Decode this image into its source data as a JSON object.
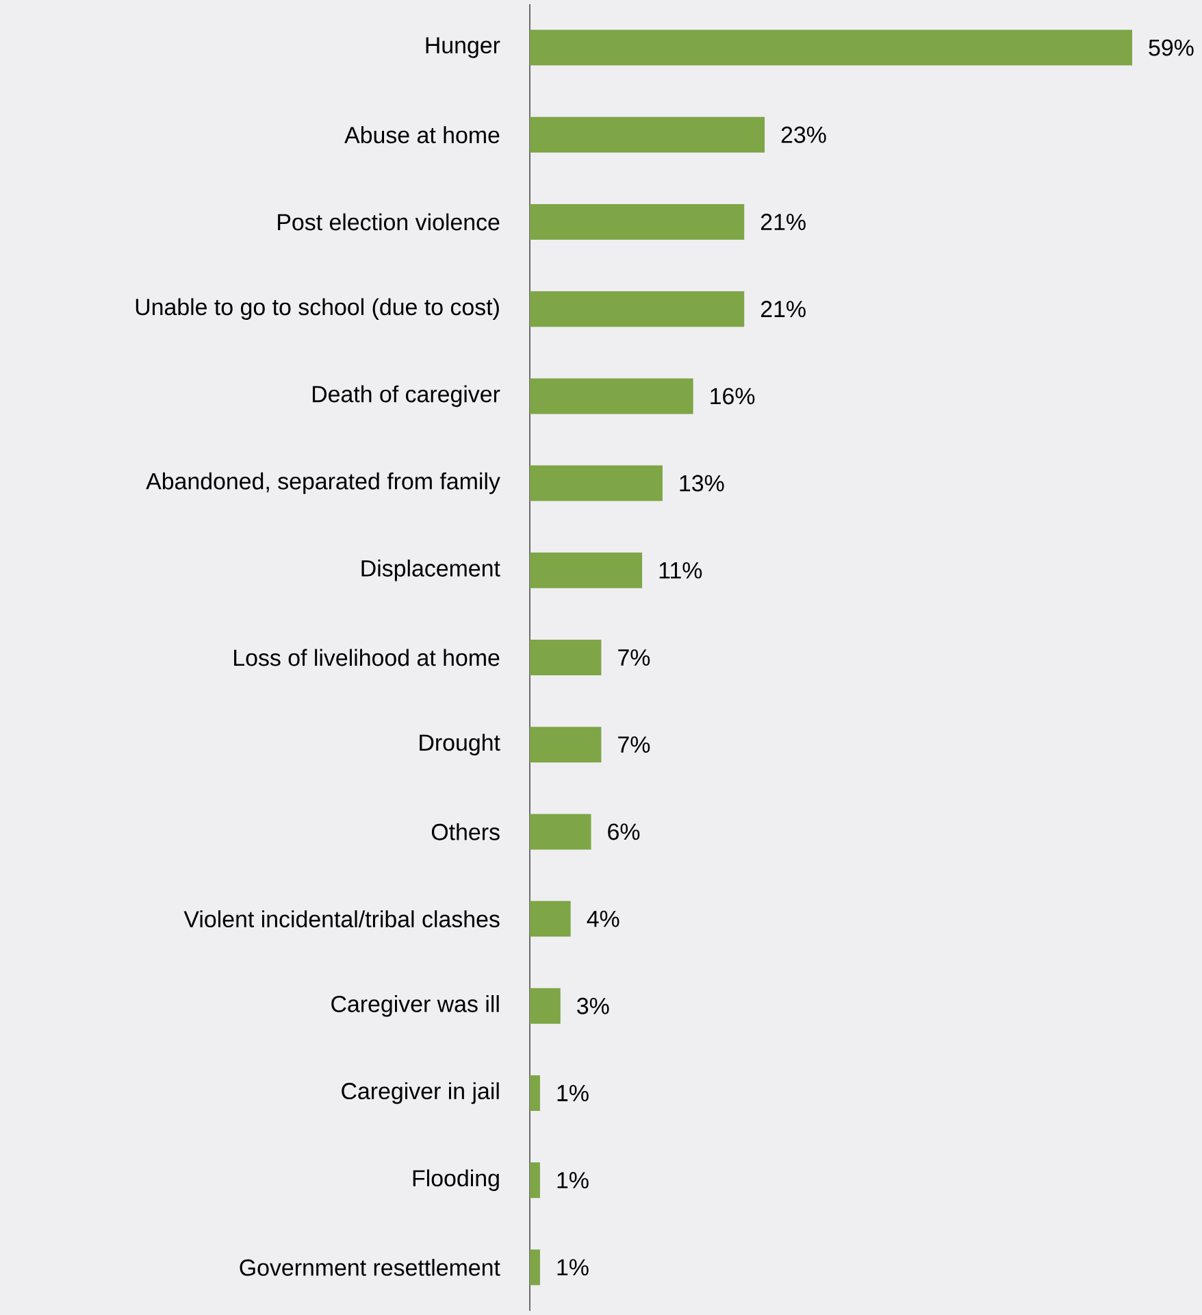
{
  "chart_data": {
    "type": "bar",
    "orientation": "horizontal",
    "color": "#7ea546",
    "categories": [
      "Hunger",
      "Abuse at home",
      "Post election violence",
      "Unable to go to school (due to cost)",
      "Death of caregiver",
      "Abandoned, separated from family",
      "Displacement",
      "Loss of livelihood at home",
      "Drought",
      "Others",
      "Violent incidental/tribal clashes",
      "Caregiver was ill",
      "Caregiver in jail",
      "Flooding",
      "Government resettlement"
    ],
    "values": [
      59,
      23,
      21,
      21,
      16,
      13,
      11,
      7,
      7,
      6,
      4,
      3,
      1,
      1,
      1
    ],
    "value_labels": [
      "59%",
      "23%",
      "21%",
      "21%",
      "16%",
      "13%",
      "11%",
      "7%",
      "7%",
      "6%",
      "4%",
      "3%",
      "1%",
      "1%",
      "1%"
    ]
  }
}
